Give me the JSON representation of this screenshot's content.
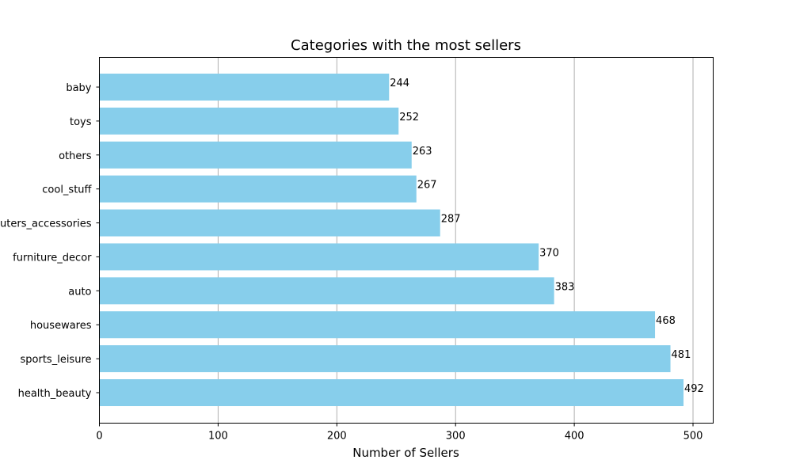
{
  "chart_data": {
    "type": "bar",
    "orientation": "horizontal",
    "title": "Categories with the most sellers",
    "xlabel": "Number of Sellers",
    "ylabel": "",
    "categories": [
      "health_beauty",
      "sports_leisure",
      "housewares",
      "auto",
      "furniture_decor",
      "computers_accessories",
      "cool_stuff",
      "others",
      "toys",
      "baby"
    ],
    "values": [
      492,
      481,
      468,
      383,
      370,
      287,
      267,
      263,
      252,
      244
    ],
    "xlim": [
      0,
      517
    ],
    "xticks": [
      0,
      100,
      200,
      300,
      400,
      500
    ],
    "grid": "x-only",
    "bar_color": "#87CEEB",
    "legend": "none"
  }
}
